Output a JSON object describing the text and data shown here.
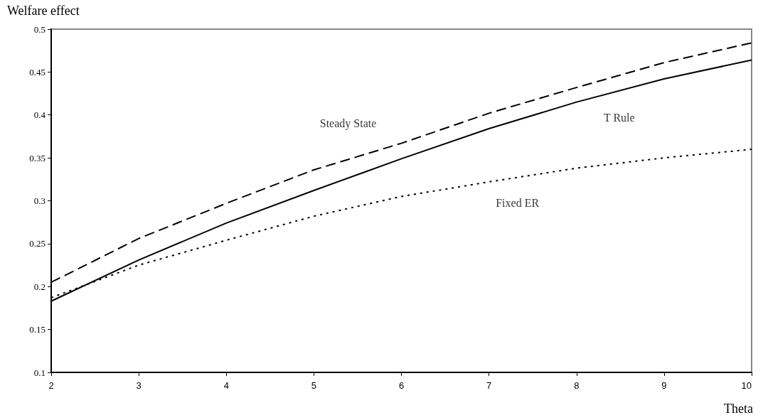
{
  "chart_data": {
    "type": "line",
    "xlabel": "Theta",
    "ylabel": "Welfare effect",
    "x": [
      2,
      3,
      4,
      5,
      6,
      7,
      8,
      9,
      10
    ],
    "series": [
      {
        "name": "Steady State",
        "color": "#000000",
        "line_style": "dashed",
        "values": [
          0.205,
          0.256,
          0.297,
          0.336,
          0.367,
          0.402,
          0.432,
          0.461,
          0.484
        ]
      },
      {
        "name": "T Rule",
        "color": "#000000",
        "line_style": "solid",
        "values": [
          0.183,
          0.231,
          0.274,
          0.312,
          0.349,
          0.384,
          0.415,
          0.442,
          0.464
        ]
      },
      {
        "name": "Fixed ER",
        "color": "#000000",
        "line_style": "dotted",
        "values": [
          0.187,
          0.225,
          0.254,
          0.282,
          0.305,
          0.322,
          0.338,
          0.35,
          0.36
        ]
      }
    ],
    "xlim": [
      2,
      10
    ],
    "xticks": [
      2,
      3,
      4,
      5,
      6,
      7,
      8,
      9,
      10
    ],
    "ylim": [
      0.1,
      0.5
    ],
    "yticks": [
      0.1,
      0.15,
      0.2,
      0.25,
      0.3,
      0.35,
      0.4,
      0.45,
      0.5
    ],
    "grid": false,
    "marker": "none"
  }
}
